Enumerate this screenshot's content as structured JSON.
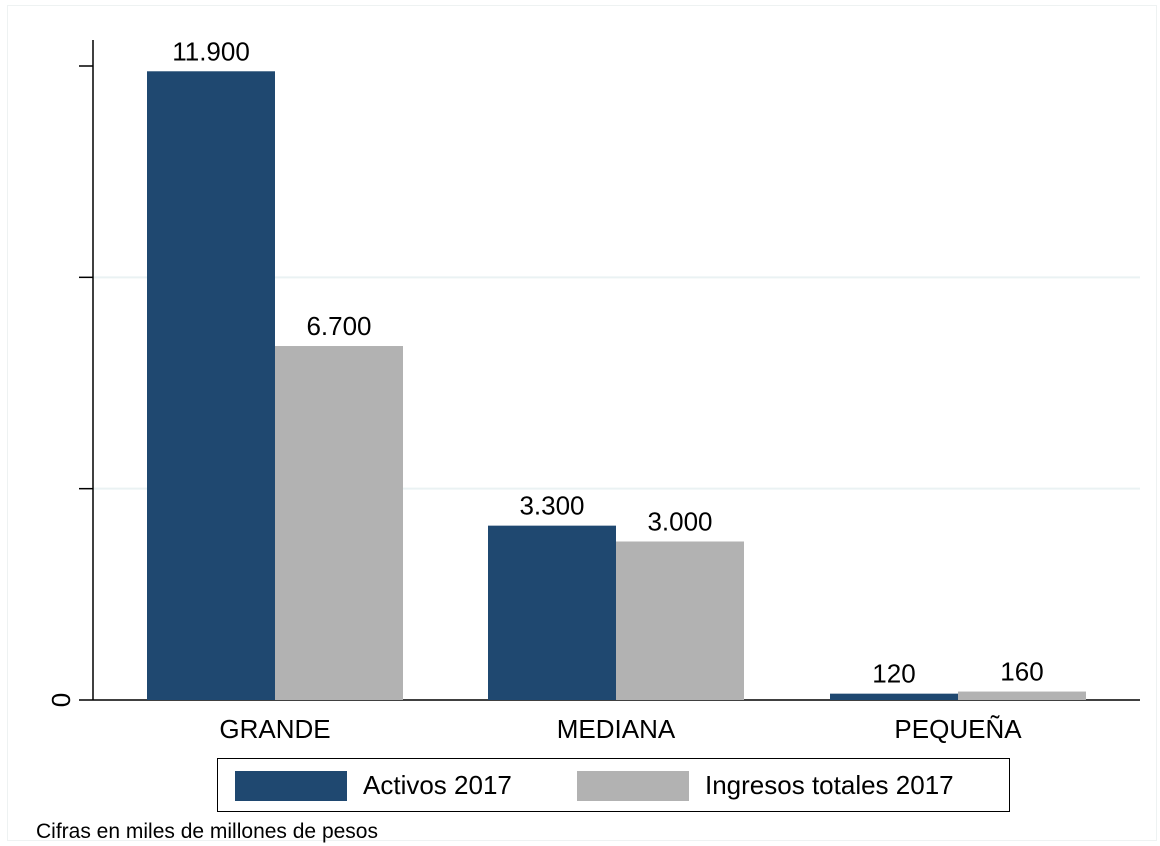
{
  "chart_data": {
    "type": "bar",
    "categories": [
      "GRANDE",
      "MEDIANA",
      "PEQUEÑA"
    ],
    "series": [
      {
        "name": "Activos 2017",
        "values": [
          11900,
          3300,
          120
        ],
        "labels": [
          "11.900",
          "3.300",
          "120"
        ],
        "color": "#1f4870"
      },
      {
        "name": "Ingresos totales 2017",
        "values": [
          6700,
          3000,
          160
        ],
        "labels": [
          "6.700",
          "3.000",
          "160"
        ],
        "color": "#b2b2b2"
      }
    ],
    "y_ticks": [
      0,
      4000,
      8000,
      12000
    ],
    "y_tick_labels": [
      "0",
      "",
      "",
      ""
    ],
    "ylim": [
      0,
      12000
    ],
    "gridlines": [
      4000,
      8000
    ],
    "grid_color": "#eaf2f3",
    "legend_placement": "bottom",
    "note": "Cifras en miles de millones de pesos"
  }
}
